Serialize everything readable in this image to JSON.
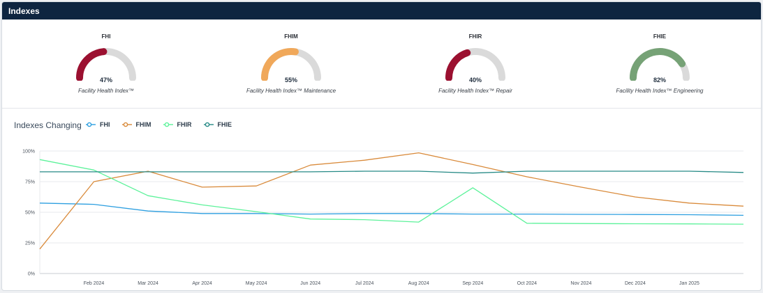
{
  "header": {
    "title": "Indexes"
  },
  "gauges": [
    {
      "code": "FHI",
      "percent_label": "47%",
      "value": 0.47,
      "color": "#9b1030",
      "description": "Facility Health Index™"
    },
    {
      "code": "FHIM",
      "percent_label": "55%",
      "value": 0.55,
      "color": "#f0a85a",
      "description": "Facility Health Index™ Maintenance"
    },
    {
      "code": "FHIR",
      "percent_label": "40%",
      "value": 0.4,
      "color": "#9b1030",
      "description": "Facility Health Index™ Repair"
    },
    {
      "code": "FHIE",
      "percent_label": "82%",
      "value": 0.82,
      "color": "#76a276",
      "description": "Facility Health Index™ Engineering"
    }
  ],
  "gauge_track_color": "#dadada",
  "chart_section": {
    "title": "Indexes Changing",
    "legend": [
      {
        "name": "FHI",
        "color": "#2d9fe0"
      },
      {
        "name": "FHIM",
        "color": "#d98a3a"
      },
      {
        "name": "FHIR",
        "color": "#5cf29a"
      },
      {
        "name": "FHIE",
        "color": "#268a86"
      }
    ]
  },
  "chart_data": {
    "type": "line",
    "x": [
      "2024-01-15",
      "Feb 2024",
      "Mar 2024",
      "Apr 2024",
      "May 2024",
      "Jun 2024",
      "Jul 2024",
      "Aug 2024",
      "Sep 2024",
      "Oct 2024",
      "Nov 2024",
      "Dec 2024",
      "Jan 2025",
      "2025-02-05"
    ],
    "tick_labels": [
      "Feb 2024",
      "Mar 2024",
      "Apr 2024",
      "May 2024",
      "Jun 2024",
      "Jul 2024",
      "Aug 2024",
      "Sep 2024",
      "Oct 2024",
      "Nov 2024",
      "Dec 2024",
      "Jan 2025"
    ],
    "y_tick_labels": [
      "0%",
      "25%",
      "50%",
      "75%",
      "100%"
    ],
    "ylim": [
      0,
      100
    ],
    "grid": true,
    "series": [
      {
        "name": "FHI",
        "color": "#2d9fe0",
        "values": [
          57.5,
          56.5,
          51,
          49,
          49,
          48.5,
          49,
          49,
          48.5,
          48.5,
          48.3,
          48.2,
          48,
          47.5
        ]
      },
      {
        "name": "FHIM",
        "color": "#d98a3a",
        "values": [
          20,
          75,
          83.5,
          70.5,
          71.5,
          88.5,
          92.5,
          98.5,
          89,
          79,
          70.5,
          62.5,
          57.5,
          55
        ]
      },
      {
        "name": "FHIR",
        "color": "#5cf29a",
        "values": [
          93,
          84.5,
          63.5,
          56,
          50.5,
          44.5,
          44,
          42,
          70,
          41,
          40.8,
          40.6,
          40.5,
          40.3
        ]
      },
      {
        "name": "FHIE",
        "color": "#268a86",
        "values": [
          83,
          83,
          83,
          83,
          83,
          83,
          83.5,
          83.5,
          82,
          83.5,
          83.5,
          83.5,
          83.5,
          82.5
        ]
      }
    ]
  }
}
